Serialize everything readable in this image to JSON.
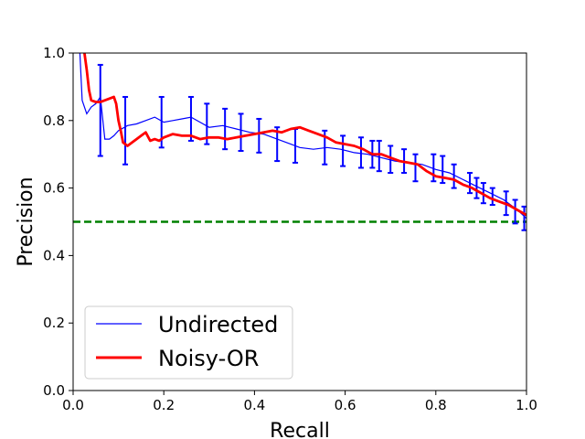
{
  "chart_data": {
    "type": "line",
    "xlabel": "Recall",
    "ylabel": "Precision",
    "xlim": [
      0.0,
      1.0
    ],
    "ylim": [
      0.0,
      1.0
    ],
    "x_ticks": [
      "0.0",
      "0.2",
      "0.4",
      "0.6",
      "0.8",
      "1.0"
    ],
    "y_ticks": [
      "0.0",
      "0.2",
      "0.4",
      "0.6",
      "0.8",
      "1.0"
    ],
    "grid": false,
    "legend_position": "lower-left",
    "baseline": {
      "y": 0.5,
      "color": "#008000",
      "style": "dashed"
    },
    "series": [
      {
        "name": "Undirected",
        "color": "#0000ff",
        "x": [
          0.015,
          0.02,
          0.03,
          0.04,
          0.05,
          0.06,
          0.07,
          0.08,
          0.09,
          0.1,
          0.12,
          0.14,
          0.16,
          0.18,
          0.2,
          0.22,
          0.24,
          0.26,
          0.28,
          0.3,
          0.33,
          0.36,
          0.39,
          0.42,
          0.45,
          0.48,
          0.5,
          0.53,
          0.56,
          0.59,
          0.62,
          0.65,
          0.68,
          0.71,
          0.74,
          0.77,
          0.8,
          0.83,
          0.86,
          0.89,
          0.92,
          0.95,
          0.98,
          1.0
        ],
        "y": [
          1.0,
          0.86,
          0.82,
          0.84,
          0.85,
          0.87,
          0.745,
          0.745,
          0.755,
          0.77,
          0.785,
          0.79,
          0.8,
          0.81,
          0.795,
          0.8,
          0.805,
          0.81,
          0.795,
          0.78,
          0.785,
          0.775,
          0.765,
          0.76,
          0.745,
          0.73,
          0.72,
          0.715,
          0.72,
          0.715,
          0.705,
          0.7,
          0.69,
          0.68,
          0.675,
          0.67,
          0.655,
          0.645,
          0.625,
          0.605,
          0.585,
          0.565,
          0.535,
          0.51
        ],
        "errorbars": [
          {
            "x": 0.06,
            "y": 0.83,
            "err": 0.135
          },
          {
            "x": 0.115,
            "y": 0.77,
            "err": 0.1
          },
          {
            "x": 0.195,
            "y": 0.795,
            "err": 0.075
          },
          {
            "x": 0.26,
            "y": 0.805,
            "err": 0.065
          },
          {
            "x": 0.295,
            "y": 0.79,
            "err": 0.06
          },
          {
            "x": 0.335,
            "y": 0.775,
            "err": 0.06
          },
          {
            "x": 0.37,
            "y": 0.765,
            "err": 0.055
          },
          {
            "x": 0.41,
            "y": 0.755,
            "err": 0.05
          },
          {
            "x": 0.45,
            "y": 0.73,
            "err": 0.05
          },
          {
            "x": 0.49,
            "y": 0.725,
            "err": 0.05
          },
          {
            "x": 0.555,
            "y": 0.72,
            "err": 0.05
          },
          {
            "x": 0.595,
            "y": 0.71,
            "err": 0.045
          },
          {
            "x": 0.635,
            "y": 0.705,
            "err": 0.045
          },
          {
            "x": 0.66,
            "y": 0.7,
            "err": 0.04
          },
          {
            "x": 0.675,
            "y": 0.695,
            "err": 0.045
          },
          {
            "x": 0.7,
            "y": 0.685,
            "err": 0.04
          },
          {
            "x": 0.73,
            "y": 0.68,
            "err": 0.035
          },
          {
            "x": 0.755,
            "y": 0.66,
            "err": 0.04
          },
          {
            "x": 0.795,
            "y": 0.66,
            "err": 0.04
          },
          {
            "x": 0.815,
            "y": 0.655,
            "err": 0.04
          },
          {
            "x": 0.84,
            "y": 0.635,
            "err": 0.035
          },
          {
            "x": 0.875,
            "y": 0.615,
            "err": 0.03
          },
          {
            "x": 0.89,
            "y": 0.6,
            "err": 0.03
          },
          {
            "x": 0.905,
            "y": 0.585,
            "err": 0.03
          },
          {
            "x": 0.925,
            "y": 0.575,
            "err": 0.025
          },
          {
            "x": 0.955,
            "y": 0.555,
            "err": 0.035
          },
          {
            "x": 0.975,
            "y": 0.53,
            "err": 0.035
          },
          {
            "x": 0.995,
            "y": 0.51,
            "err": 0.035
          }
        ]
      },
      {
        "name": "Noisy-OR",
        "color": "#ff0000",
        "x": [
          0.025,
          0.03,
          0.035,
          0.04,
          0.05,
          0.06,
          0.07,
          0.08,
          0.09,
          0.095,
          0.1,
          0.105,
          0.11,
          0.12,
          0.13,
          0.14,
          0.15,
          0.16,
          0.17,
          0.18,
          0.19,
          0.2,
          0.22,
          0.24,
          0.26,
          0.28,
          0.3,
          0.32,
          0.34,
          0.36,
          0.38,
          0.4,
          0.42,
          0.44,
          0.46,
          0.48,
          0.5,
          0.52,
          0.54,
          0.56,
          0.58,
          0.6,
          0.62,
          0.64,
          0.66,
          0.68,
          0.7,
          0.72,
          0.74,
          0.76,
          0.78,
          0.8,
          0.82,
          0.84,
          0.86,
          0.88,
          0.9,
          0.92,
          0.94,
          0.96,
          0.98,
          1.0
        ],
        "y": [
          1.0,
          0.95,
          0.89,
          0.86,
          0.855,
          0.855,
          0.86,
          0.865,
          0.87,
          0.85,
          0.8,
          0.77,
          0.735,
          0.725,
          0.735,
          0.745,
          0.755,
          0.765,
          0.74,
          0.745,
          0.74,
          0.75,
          0.76,
          0.755,
          0.755,
          0.745,
          0.75,
          0.75,
          0.745,
          0.75,
          0.755,
          0.76,
          0.765,
          0.77,
          0.765,
          0.775,
          0.78,
          0.77,
          0.76,
          0.75,
          0.735,
          0.73,
          0.725,
          0.715,
          0.7,
          0.7,
          0.69,
          0.68,
          0.675,
          0.67,
          0.65,
          0.635,
          0.63,
          0.625,
          0.61,
          0.6,
          0.585,
          0.57,
          0.56,
          0.55,
          0.535,
          0.52
        ]
      }
    ]
  }
}
